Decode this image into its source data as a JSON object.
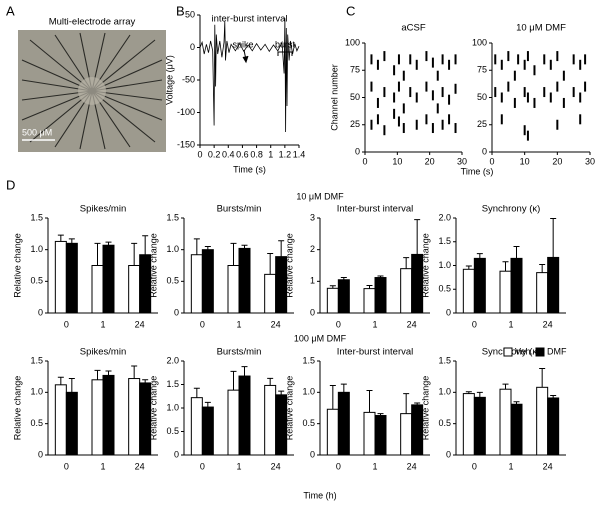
{
  "panel_labels": [
    "A",
    "B",
    "C",
    "D"
  ],
  "panel_a": {
    "title": "Multi-electrode array",
    "scale_bar": "500 μM"
  },
  "panel_c": {
    "x_label": "Time (s)"
  },
  "panel_d": {
    "group_titles": [
      "10 μM DMF",
      "100 μM DMF"
    ],
    "x_label": "Time (h)"
  },
  "chart_data": [
    {
      "type": "line",
      "title": "inter-burst interval",
      "xlabel": "Time (s)",
      "ylabel": "Voltage (μV)",
      "annotations": [
        "spike",
        "burst"
      ],
      "color": "#000000",
      "x": [
        0,
        0.03,
        0.06,
        0.09,
        0.12,
        0.15,
        0.18,
        0.2,
        0.21,
        0.22,
        0.23,
        0.25,
        0.28,
        0.31,
        0.34,
        0.35,
        0.36,
        0.38,
        0.41,
        0.44,
        0.5,
        0.56,
        0.62,
        0.68,
        0.74,
        0.8,
        0.86,
        0.92,
        0.98,
        1.04,
        1.1,
        1.16,
        1.19,
        1.2,
        1.21,
        1.22,
        1.23,
        1.24,
        1.26,
        1.28,
        1.31,
        1.34,
        1.37,
        1.4
      ],
      "values": [
        0,
        8,
        -10,
        5,
        -8,
        10,
        -5,
        -120,
        35,
        -60,
        20,
        -10,
        10,
        -15,
        8,
        40,
        -20,
        10,
        -8,
        5,
        -5,
        6,
        -6,
        4,
        -5,
        6,
        -4,
        5,
        -6,
        4,
        -5,
        8,
        -40,
        45,
        -130,
        30,
        -90,
        20,
        -20,
        10,
        -10,
        6,
        -5,
        2
      ],
      "xlim": [
        0,
        1.4
      ],
      "xticks": [
        0,
        0.2,
        0.4,
        0.6,
        0.8,
        1,
        1.2,
        1.4
      ],
      "ylim": [
        -150,
        50
      ],
      "yticks": [
        -150,
        -100,
        -50,
        0,
        50
      ]
    },
    {
      "type": "raster",
      "title": "aCSF",
      "ylabel": "Channel number",
      "color": "#000000",
      "x": [
        2,
        2,
        2,
        4,
        4,
        4,
        6,
        6,
        6,
        9,
        9,
        9,
        10.5,
        10.5,
        10.5,
        12,
        12,
        12,
        14,
        14,
        16,
        16,
        16,
        19,
        19,
        19,
        21,
        21,
        21,
        22.5,
        22.5,
        24,
        24,
        24,
        26,
        26,
        26,
        28,
        28,
        28
      ],
      "values": [
        85,
        60,
        25,
        80,
        45,
        30,
        88,
        55,
        20,
        75,
        50,
        35,
        85,
        60,
        28,
        70,
        40,
        22,
        85,
        55,
        80,
        50,
        25,
        88,
        60,
        30,
        82,
        52,
        22,
        70,
        40,
        85,
        55,
        25,
        80,
        48,
        30,
        85,
        58,
        22
      ],
      "xlim": [
        0,
        30
      ],
      "xticks": [
        0,
        10,
        20,
        30
      ],
      "ylim": [
        0,
        100
      ],
      "yticks": [
        0,
        25,
        50,
        75,
        100
      ]
    },
    {
      "type": "raster",
      "title": "10 μM DMF",
      "color": "#000000",
      "x": [
        1,
        1,
        3,
        3,
        3,
        5,
        5,
        7,
        7,
        8,
        10,
        10,
        10,
        11,
        11,
        11,
        13,
        13,
        16,
        16,
        18,
        18,
        20,
        20,
        20,
        22,
        22,
        25,
        25,
        27,
        27,
        27,
        28.5,
        28.5
      ],
      "values": [
        85,
        55,
        80,
        50,
        30,
        88,
        60,
        70,
        45,
        85,
        80,
        55,
        20,
        88,
        50,
        15,
        75,
        45,
        85,
        55,
        80,
        50,
        88,
        60,
        25,
        70,
        45,
        85,
        55,
        80,
        50,
        30,
        85,
        60
      ],
      "xlim": [
        0,
        30
      ],
      "xticks": [
        0,
        10,
        20,
        30
      ],
      "ylim": [
        0,
        100
      ],
      "yticks": [
        0,
        25,
        50,
        75,
        100
      ]
    },
    {
      "type": "bar",
      "title": "Spikes/min",
      "ylabel": "Relative change",
      "categories": [
        "0",
        "1",
        "24"
      ],
      "series": [
        {
          "name": "Veh.",
          "color": "#ffffff",
          "values": [
            1.13,
            0.75,
            0.75
          ],
          "errors": [
            0.1,
            0.35,
            0.35
          ]
        },
        {
          "name": "DMF",
          "color": "#000000",
          "values": [
            1.1,
            1.07,
            0.92
          ],
          "errors": [
            0.07,
            0.05,
            0.3
          ]
        }
      ],
      "ylim": [
        0,
        1.5
      ],
      "yticks": [
        0,
        0.5,
        {
          "value": 1,
          "label": "1.0"
        },
        1.5
      ]
    },
    {
      "type": "bar",
      "title": "Bursts/min",
      "ylabel": "Relative change",
      "categories": [
        "0",
        "1",
        "24"
      ],
      "series": [
        {
          "name": "Veh.",
          "color": "#ffffff",
          "values": [
            0.92,
            0.75,
            0.61
          ],
          "errors": [
            0.25,
            0.35,
            0.33
          ]
        },
        {
          "name": "DMF",
          "color": "#000000",
          "values": [
            1.0,
            1.02,
            0.89
          ],
          "errors": [
            0.05,
            0.05,
            0.25
          ]
        }
      ],
      "ylim": [
        0,
        1.5
      ],
      "yticks": [
        0,
        0.5,
        {
          "value": 1,
          "label": "1.0"
        },
        1.5
      ]
    },
    {
      "type": "bar",
      "title": "Inter-burst interval",
      "ylabel": "Relative change",
      "categories": [
        "0",
        "1",
        "24"
      ],
      "series": [
        {
          "name": "Veh.",
          "color": "#ffffff",
          "values": [
            0.78,
            0.77,
            1.4
          ],
          "errors": [
            0.08,
            0.1,
            0.35
          ]
        },
        {
          "name": "DMF",
          "color": "#000000",
          "values": [
            1.05,
            1.12,
            1.85
          ],
          "errors": [
            0.07,
            0.05,
            1.1
          ]
        }
      ],
      "ylim": [
        0,
        3
      ],
      "yticks": [
        0,
        1,
        2,
        3
      ]
    },
    {
      "type": "bar",
      "title": "Synchrony (κ)",
      "ylabel": "Relative change",
      "categories": [
        "0",
        "1",
        "24"
      ],
      "series": [
        {
          "name": "Veh.",
          "color": "#ffffff",
          "values": [
            0.92,
            0.88,
            0.85
          ],
          "errors": [
            0.07,
            0.2,
            0.17
          ]
        },
        {
          "name": "DMF",
          "color": "#000000",
          "values": [
            1.15,
            1.15,
            1.17
          ],
          "errors": [
            0.1,
            0.25,
            0.82
          ]
        }
      ],
      "ylim": [
        0,
        2
      ],
      "yticks": [
        0,
        0.5,
        {
          "value": 1,
          "label": "1.0"
        },
        1.5,
        {
          "value": 2,
          "label": "2.0"
        }
      ]
    },
    {
      "type": "bar",
      "title": "Spikes/min",
      "ylabel": "Relative change",
      "categories": [
        "0",
        "1",
        "24"
      ],
      "series": [
        {
          "name": "Veh.",
          "color": "#ffffff",
          "values": [
            1.12,
            1.2,
            1.22
          ],
          "errors": [
            0.12,
            0.15,
            0.2
          ]
        },
        {
          "name": "DMF",
          "color": "#000000",
          "values": [
            1.0,
            1.27,
            1.15
          ],
          "errors": [
            0.22,
            0.07,
            0.05
          ]
        }
      ],
      "ylim": [
        0,
        1.5
      ],
      "yticks": [
        0,
        0.5,
        {
          "value": 1,
          "label": "1.0"
        },
        1.5
      ]
    },
    {
      "type": "bar",
      "title": "Bursts/min",
      "ylabel": "Relative change",
      "categories": [
        "0",
        "1",
        "24"
      ],
      "series": [
        {
          "name": "Veh.",
          "color": "#ffffff",
          "values": [
            1.22,
            1.38,
            1.48
          ],
          "errors": [
            0.2,
            0.4,
            0.15
          ]
        },
        {
          "name": "DMF",
          "color": "#000000",
          "values": [
            1.02,
            1.68,
            1.28
          ],
          "errors": [
            0.1,
            0.2,
            0.08
          ]
        }
      ],
      "ylim": [
        0,
        2
      ],
      "yticks": [
        0,
        0.5,
        {
          "value": 1,
          "label": "1.0"
        },
        1.5,
        {
          "value": 2,
          "label": "2.0"
        }
      ]
    },
    {
      "type": "bar",
      "title": "Inter-burst interval",
      "ylabel": "Relative change",
      "categories": [
        "0",
        "1",
        "24"
      ],
      "series": [
        {
          "name": "Veh.",
          "color": "#ffffff",
          "values": [
            0.73,
            0.68,
            0.66
          ],
          "errors": [
            0.38,
            0.35,
            0.32
          ]
        },
        {
          "name": "DMF",
          "color": "#000000",
          "values": [
            1.0,
            0.63,
            0.8
          ],
          "errors": [
            0.13,
            0.03,
            0.03
          ]
        }
      ],
      "ylim": [
        0,
        1.5
      ],
      "yticks": [
        0,
        0.5,
        {
          "value": 1,
          "label": "1.0"
        },
        1.5
      ]
    },
    {
      "type": "bar",
      "title": "Synchrony (κ)",
      "ylabel": "Relative change",
      "categories": [
        "0",
        "1",
        "24"
      ],
      "legend": "top-right",
      "series": [
        {
          "name": "Veh.",
          "color": "#ffffff",
          "values": [
            0.98,
            1.05,
            1.08
          ],
          "errors": [
            0.03,
            0.08,
            0.3
          ]
        },
        {
          "name": "DMF",
          "color": "#000000",
          "values": [
            0.92,
            0.81,
            0.91
          ],
          "errors": [
            0.08,
            0.04,
            0.04
          ]
        }
      ],
      "ylim": [
        0,
        1.5
      ],
      "yticks": [
        0,
        0.5,
        {
          "value": 1,
          "label": "1.0"
        },
        1.5
      ]
    }
  ]
}
